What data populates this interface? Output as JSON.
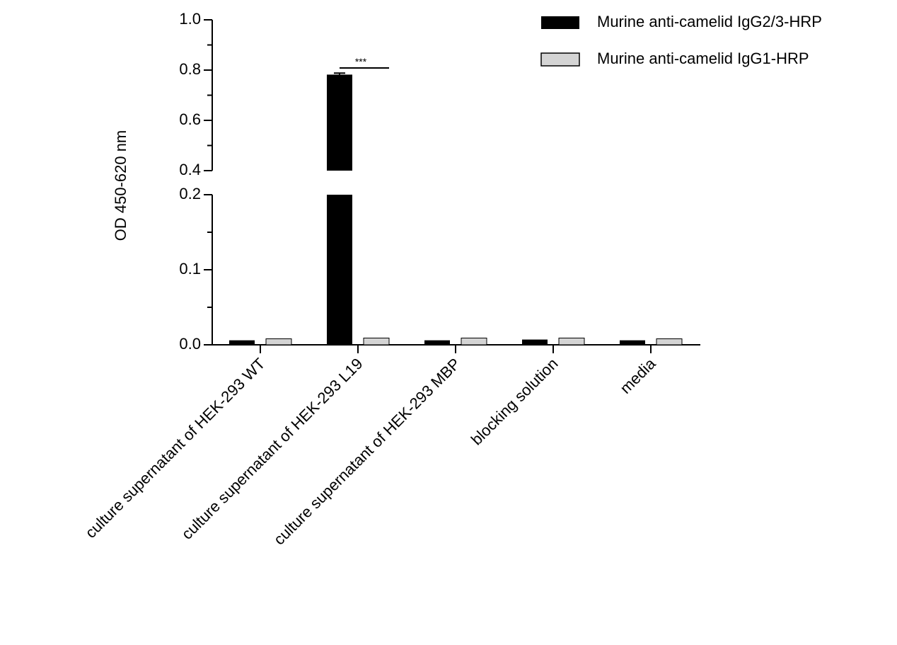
{
  "chart_data": {
    "type": "bar",
    "ylabel": "OD 450-620 nm",
    "categories": [
      "culture supernatant of HEK-293 WT",
      "culture supernatant of HEK-293 L19",
      "culture supernatant of HEK-293 MBP",
      "blocking solution",
      "media"
    ],
    "series": [
      {
        "name": "Murine anti-camelid IgG2/3-HRP",
        "color": "#000000",
        "values": [
          0.006,
          0.782,
          0.006,
          0.007,
          0.006
        ],
        "errors": [
          0,
          0.006,
          0,
          0,
          0
        ]
      },
      {
        "name": "Murine anti-camelid IgG1-HRP",
        "color": "#d4d4d4",
        "values": [
          0.008,
          0.009,
          0.009,
          0.009,
          0.008
        ],
        "errors": [
          0,
          0,
          0,
          0,
          0
        ]
      }
    ],
    "y_axis": {
      "broken": true,
      "lower_segment": {
        "range": [
          0,
          0.2
        ],
        "ticks": [
          "0.0",
          "0.1",
          "0.2"
        ]
      },
      "upper_segment": {
        "range": [
          0.4,
          1.0
        ],
        "ticks": [
          "0.4",
          "0.6",
          "0.8",
          "1.0"
        ]
      }
    },
    "significance": [
      {
        "category_index": 1,
        "label": "***"
      }
    ],
    "legend_position": "top-right",
    "grid": false
  }
}
